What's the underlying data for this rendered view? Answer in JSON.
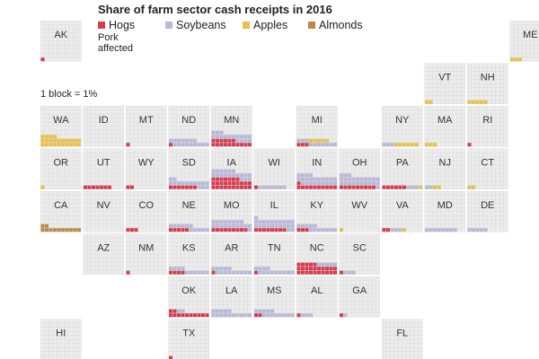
{
  "title": "Share of farm sector cash receipts in 2016",
  "legend": [
    {
      "key": "hogs",
      "label": "Hogs",
      "color": "#d93b4e"
    },
    {
      "key": "soybeans",
      "label": "Soybeans",
      "color": "#b7b9d8"
    },
    {
      "key": "apples",
      "label": "Apples",
      "color": "#e8c14b"
    },
    {
      "key": "almonds",
      "label": "Almonds",
      "color": "#b98b45"
    }
  ],
  "annotation": "Pork\naffected",
  "scale_note": "1 block = 1%",
  "colors": {
    "tile": "#ececec",
    "empty_cell": "#dcdcdc"
  },
  "chart_data": {
    "type": "waffle tile grid map",
    "units": "percent of state farm cash receipts (1 block = 1%)",
    "states": [
      {
        "abbr": "AK",
        "hogs": 1,
        "soybeans": 0,
        "apples": 0,
        "almonds": 0
      },
      {
        "abbr": "ME",
        "hogs": 0,
        "soybeans": 0,
        "apples": 3,
        "almonds": 0
      },
      {
        "abbr": "VT",
        "hogs": 0,
        "soybeans": 0,
        "apples": 2,
        "almonds": 0
      },
      {
        "abbr": "NH",
        "hogs": 0,
        "soybeans": 0,
        "apples": 5,
        "almonds": 0
      },
      {
        "abbr": "WA",
        "hogs": 0,
        "soybeans": 0,
        "apples": 24,
        "almonds": 0
      },
      {
        "abbr": "ID",
        "hogs": 0,
        "soybeans": 0,
        "apples": 0,
        "almonds": 0
      },
      {
        "abbr": "MT",
        "hogs": 1,
        "soybeans": 0,
        "apples": 0,
        "almonds": 0
      },
      {
        "abbr": "ND",
        "hogs": 1,
        "soybeans": 16,
        "apples": 0,
        "almonds": 0
      },
      {
        "abbr": "MN",
        "hogs": 16,
        "soybeans": 17,
        "apples": 0,
        "almonds": 0
      },
      {
        "abbr": "MI",
        "hogs": 3,
        "soybeans": 10,
        "apples": 5,
        "almonds": 0
      },
      {
        "abbr": "NY",
        "hogs": 0,
        "soybeans": 3,
        "apples": 6,
        "almonds": 0
      },
      {
        "abbr": "MA",
        "hogs": 0,
        "soybeans": 0,
        "apples": 3,
        "almonds": 0
      },
      {
        "abbr": "RI",
        "hogs": 1,
        "soybeans": 0,
        "apples": 0,
        "almonds": 0
      },
      {
        "abbr": "OR",
        "hogs": 0,
        "soybeans": 0,
        "apples": 1,
        "almonds": 0
      },
      {
        "abbr": "UT",
        "hogs": 7,
        "soybeans": 0,
        "apples": 0,
        "almonds": 0
      },
      {
        "abbr": "WY",
        "hogs": 2,
        "soybeans": 0,
        "apples": 0,
        "almonds": 0
      },
      {
        "abbr": "SD",
        "hogs": 7,
        "soybeans": 15,
        "apples": 0,
        "almonds": 0
      },
      {
        "abbr": "IA",
        "hogs": 27,
        "soybeans": 19,
        "apples": 0,
        "almonds": 0
      },
      {
        "abbr": "WI",
        "hogs": 1,
        "soybeans": 7,
        "apples": 0,
        "almonds": 0
      },
      {
        "abbr": "IN",
        "hogs": 11,
        "soybeans": 23,
        "apples": 0,
        "almonds": 0
      },
      {
        "abbr": "OH",
        "hogs": 9,
        "soybeans": 24,
        "apples": 0,
        "almonds": 0
      },
      {
        "abbr": "PA",
        "hogs": 6,
        "soybeans": 3,
        "apples": 1,
        "almonds": 0
      },
      {
        "abbr": "NJ",
        "hogs": 0,
        "soybeans": 2,
        "apples": 2,
        "almonds": 0
      },
      {
        "abbr": "CT",
        "hogs": 0,
        "soybeans": 0,
        "apples": 2,
        "almonds": 0
      },
      {
        "abbr": "CA",
        "hogs": 0,
        "soybeans": 0,
        "apples": 0,
        "almonds": 12
      },
      {
        "abbr": "NV",
        "hogs": 0,
        "soybeans": 0,
        "apples": 0,
        "almonds": 0
      },
      {
        "abbr": "CO",
        "hogs": 3,
        "soybeans": 0,
        "apples": 0,
        "almonds": 0
      },
      {
        "abbr": "NE",
        "hogs": 5,
        "soybeans": 11,
        "apples": 0,
        "almonds": 0
      },
      {
        "abbr": "MO",
        "hogs": 9,
        "soybeans": 19,
        "apples": 0,
        "almonds": 0
      },
      {
        "abbr": "IL",
        "hogs": 8,
        "soybeans": 23,
        "apples": 0,
        "almonds": 0
      },
      {
        "abbr": "KY",
        "hogs": 3,
        "soybeans": 12,
        "apples": 0,
        "almonds": 0
      },
      {
        "abbr": "WV",
        "hogs": 0,
        "soybeans": 0,
        "apples": 1,
        "almonds": 0
      },
      {
        "abbr": "VA",
        "hogs": 2,
        "soybeans": 3,
        "apples": 1,
        "almonds": 0
      },
      {
        "abbr": "MD",
        "hogs": 0,
        "soybeans": 8,
        "apples": 0,
        "almonds": 0
      },
      {
        "abbr": "DE",
        "hogs": 0,
        "soybeans": 5,
        "apples": 0,
        "almonds": 0
      },
      {
        "abbr": "AZ",
        "hogs": 0,
        "soybeans": 0,
        "apples": 0,
        "almonds": 0
      },
      {
        "abbr": "NM",
        "hogs": 1,
        "soybeans": 0,
        "apples": 0,
        "almonds": 0
      },
      {
        "abbr": "KS",
        "hogs": 4,
        "soybeans": 10,
        "apples": 0,
        "almonds": 0
      },
      {
        "abbr": "AR",
        "hogs": 1,
        "soybeans": 14,
        "apples": 0,
        "almonds": 0
      },
      {
        "abbr": "TN",
        "hogs": 1,
        "soybeans": 13,
        "apples": 0,
        "almonds": 0
      },
      {
        "abbr": "NC",
        "hogs": 25,
        "soybeans": 5,
        "apples": 0,
        "almonds": 0
      },
      {
        "abbr": "SC",
        "hogs": 1,
        "soybeans": 3,
        "apples": 0,
        "almonds": 0
      },
      {
        "abbr": "OK",
        "hogs": 12,
        "soybeans": 2,
        "apples": 0,
        "almonds": 0
      },
      {
        "abbr": "LA",
        "hogs": 0,
        "soybeans": 15,
        "apples": 0,
        "almonds": 0
      },
      {
        "abbr": "MS",
        "hogs": 2,
        "soybeans": 13,
        "apples": 0,
        "almonds": 0
      },
      {
        "abbr": "AL",
        "hogs": 1,
        "soybeans": 3,
        "apples": 0,
        "almonds": 0
      },
      {
        "abbr": "GA",
        "hogs": 1,
        "soybeans": 1,
        "apples": 0,
        "almonds": 0
      },
      {
        "abbr": "HI",
        "hogs": 0,
        "soybeans": 0,
        "apples": 0,
        "almonds": 0
      },
      {
        "abbr": "TX",
        "hogs": 1,
        "soybeans": 0,
        "apples": 0,
        "almonds": 0
      },
      {
        "abbr": "FL",
        "hogs": 0,
        "soybeans": 0,
        "apples": 0,
        "almonds": 0
      }
    ]
  }
}
